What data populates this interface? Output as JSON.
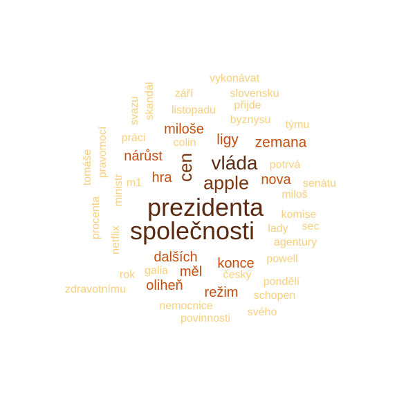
{
  "palette": {
    "darkest": "#5a2a12",
    "dark": "#7a3712",
    "strong": "#c24f10",
    "medium": "#e07a18",
    "soft": "#f0b04a",
    "light": "#f7cf7e"
  },
  "words": [
    {
      "text": "prezidenta",
      "tone": "darkest",
      "rank": 1
    },
    {
      "text": "společnosti",
      "tone": "darkest",
      "rank": 2
    },
    {
      "text": "vláda",
      "tone": "darkest",
      "rank": 3
    },
    {
      "text": "apple",
      "tone": "dark",
      "rank": 4
    },
    {
      "text": "cen",
      "tone": "dark",
      "rank": 5
    },
    {
      "text": "ligy",
      "tone": "strong",
      "rank": 6
    },
    {
      "text": "zemana",
      "tone": "strong",
      "rank": 7
    },
    {
      "text": "miloše",
      "tone": "strong",
      "rank": 8
    },
    {
      "text": "nárůst",
      "tone": "strong",
      "rank": 9
    },
    {
      "text": "hra",
      "tone": "strong",
      "rank": 10
    },
    {
      "text": "nova",
      "tone": "strong",
      "rank": 11
    },
    {
      "text": "dalších",
      "tone": "strong",
      "rank": 12
    },
    {
      "text": "konce",
      "tone": "strong",
      "rank": 13
    },
    {
      "text": "měl",
      "tone": "strong",
      "rank": 14
    },
    {
      "text": "oliheň",
      "tone": "strong",
      "rank": 15
    },
    {
      "text": "režim",
      "tone": "strong",
      "rank": 16
    },
    {
      "text": "vykonávat",
      "tone": "light",
      "rank": 17
    },
    {
      "text": "září",
      "tone": "light",
      "rank": 18
    },
    {
      "text": "slovensku",
      "tone": "light",
      "rank": 19
    },
    {
      "text": "přijde",
      "tone": "light",
      "rank": 20
    },
    {
      "text": "listopadu",
      "tone": "light",
      "rank": 21
    },
    {
      "text": "skandál",
      "tone": "light",
      "rank": 22
    },
    {
      "text": "svazu",
      "tone": "light",
      "rank": 23
    },
    {
      "text": "byznysu",
      "tone": "light",
      "rank": 24
    },
    {
      "text": "týmu",
      "tone": "light",
      "rank": 25
    },
    {
      "text": "práci",
      "tone": "light",
      "rank": 26
    },
    {
      "text": "colin",
      "tone": "light",
      "rank": 27
    },
    {
      "text": "pravomocí",
      "tone": "light",
      "rank": 28
    },
    {
      "text": "tomáše",
      "tone": "light",
      "rank": 29
    },
    {
      "text": "potrvá",
      "tone": "light",
      "rank": 30
    },
    {
      "text": "m1",
      "tone": "light",
      "rank": 31
    },
    {
      "text": "senátu",
      "tone": "light",
      "rank": 32
    },
    {
      "text": "miloš",
      "tone": "light",
      "rank": 33
    },
    {
      "text": "ministr",
      "tone": "light",
      "rank": 34
    },
    {
      "text": "procenta",
      "tone": "light",
      "rank": 35
    },
    {
      "text": "komise",
      "tone": "light",
      "rank": 36
    },
    {
      "text": "lady",
      "tone": "light",
      "rank": 37
    },
    {
      "text": "sec",
      "tone": "light",
      "rank": 38
    },
    {
      "text": "netflix",
      "tone": "light",
      "rank": 39
    },
    {
      "text": "agentury",
      "tone": "light",
      "rank": 40
    },
    {
      "text": "powell",
      "tone": "light",
      "rank": 41
    },
    {
      "text": "galia",
      "tone": "light",
      "rank": 42
    },
    {
      "text": "rok",
      "tone": "light",
      "rank": 43
    },
    {
      "text": "český",
      "tone": "light",
      "rank": 44
    },
    {
      "text": "pondělí",
      "tone": "light",
      "rank": 45
    },
    {
      "text": "zdravotnímu",
      "tone": "light",
      "rank": 46
    },
    {
      "text": "schopen",
      "tone": "light",
      "rank": 47
    },
    {
      "text": "nemocnice",
      "tone": "light",
      "rank": 48
    },
    {
      "text": "svého",
      "tone": "light",
      "rank": 49
    },
    {
      "text": "povinnosti",
      "tone": "light",
      "rank": 50
    }
  ]
}
